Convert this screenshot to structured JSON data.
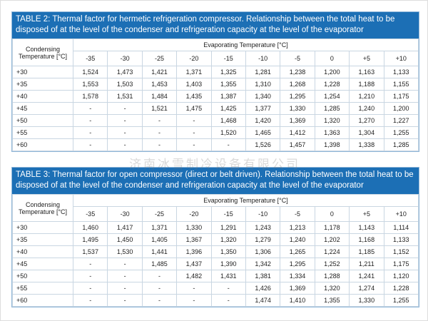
{
  "tables": [
    {
      "title": "TABLE 2: Thermal factor for hermetic refrigeration compressor. Relationship between the total heat to be disposed of at the level of the condenser and refrigeration capacity at the level of the evaporator",
      "row_header": "Condensing Temperature [°C]",
      "column_group_header": "Evaporating Temperature  [°C]",
      "columns": [
        "-35",
        "-30",
        "-25",
        "-20",
        "-15",
        "-10",
        "-5",
        "0",
        "+5",
        "+10"
      ],
      "rows": [
        [
          "+30",
          "1,524",
          "1,473",
          "1,421",
          "1,371",
          "1,325",
          "1,281",
          "1,238",
          "1,200",
          "1,163",
          "1,133"
        ],
        [
          "+35",
          "1,553",
          "1,503",
          "1,453",
          "1,403",
          "1,355",
          "1,310",
          "1,268",
          "1,228",
          "1,188",
          "1,155"
        ],
        [
          "+40",
          "1,578",
          "1,531",
          "1,484",
          "1,435",
          "1,387",
          "1,340",
          "1,295",
          "1,254",
          "1,210",
          "1,175"
        ],
        [
          "+45",
          "-",
          "-",
          "1,521",
          "1,475",
          "1,425",
          "1,377",
          "1,330",
          "1,285",
          "1,240",
          "1,200"
        ],
        [
          "+50",
          "-",
          "-",
          "-",
          "-",
          "1,468",
          "1,420",
          "1,369",
          "1,320",
          "1,270",
          "1,227"
        ],
        [
          "+55",
          "-",
          "-",
          "-",
          "-",
          "1,520",
          "1,465",
          "1,412",
          "1,363",
          "1,304",
          "1,255"
        ],
        [
          "+60",
          "-",
          "-",
          "-",
          "-",
          "-",
          "1,526",
          "1,457",
          "1,398",
          "1,338",
          "1,285"
        ]
      ]
    },
    {
      "title": "TABLE 3: Thermal factor for open compressor (direct or belt driven). Relationship between the total heat to be disposed of at the level of the condenser and refrigeration capacity at the level of the evaporator",
      "row_header": "Condensing Temperature [°C]",
      "column_group_header": "Evaporating Temperature  [°C]",
      "columns": [
        "-35",
        "-30",
        "-25",
        "-20",
        "-15",
        "-10",
        "-5",
        "0",
        "+5",
        "+10"
      ],
      "rows": [
        [
          "+30",
          "1,460",
          "1,417",
          "1,371",
          "1,330",
          "1,291",
          "1,243",
          "1,213",
          "1,178",
          "1,143",
          "1,114"
        ],
        [
          "+35",
          "1,495",
          "1,450",
          "1,405",
          "1,367",
          "1,320",
          "1,279",
          "1,240",
          "1,202",
          "1,168",
          "1,133"
        ],
        [
          "+40",
          "1,537",
          "1,530",
          "1,441",
          "1,396",
          "1,350",
          "1,306",
          "1,265",
          "1,224",
          "1,185",
          "1,152"
        ],
        [
          "+45",
          "-",
          "-",
          "1,485",
          "1,437",
          "1,390",
          "1,342",
          "1,295",
          "1,252",
          "1,211",
          "1,175"
        ],
        [
          "+50",
          "-",
          "-",
          "-",
          "1,482",
          "1,431",
          "1,381",
          "1,334",
          "1,288",
          "1,241",
          "1,120"
        ],
        [
          "+55",
          "-",
          "-",
          "-",
          "-",
          "-",
          "1,426",
          "1,369",
          "1,320",
          "1,274",
          "1,228"
        ],
        [
          "+60",
          "-",
          "-",
          "-",
          "-",
          "-",
          "1,474",
          "1,410",
          "1,355",
          "1,330",
          "1,255"
        ]
      ]
    }
  ],
  "watermark": "济南冰雪制冷设备有限公司"
}
